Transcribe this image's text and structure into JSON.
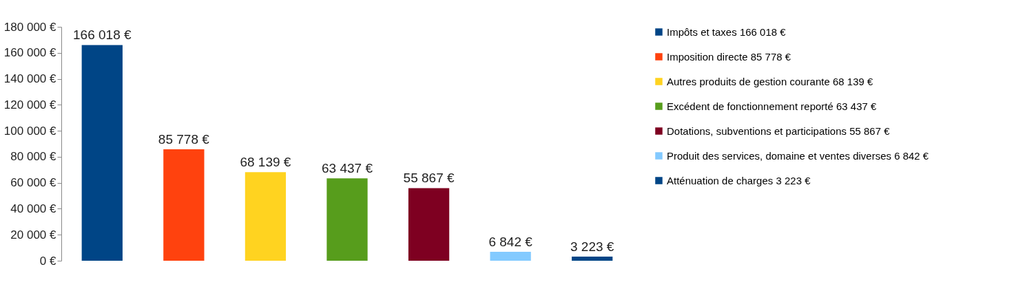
{
  "chart_data": {
    "type": "bar",
    "stacked": true,
    "categories": [
      null,
      null,
      null,
      null,
      null,
      null,
      null
    ],
    "series": [
      {
        "name": "Impôts et taxes 166 018 €",
        "color": "#004586",
        "values": [
          166018,
          null,
          null,
          null,
          null,
          null,
          null
        ],
        "value_labels": [
          "166 018 €",
          null,
          null,
          null,
          null,
          null,
          null
        ]
      },
      {
        "name": "Imposition directe 85 778 €",
        "color": "#ff420e",
        "values": [
          null,
          85778,
          null,
          null,
          null,
          null,
          null
        ],
        "value_labels": [
          null,
          "85 778 €",
          null,
          null,
          null,
          null,
          null
        ]
      },
      {
        "name": "Autres produits de gestion courante 68 139 €",
        "color": "#ffd320",
        "values": [
          null,
          null,
          68139,
          null,
          null,
          null,
          null
        ],
        "value_labels": [
          null,
          null,
          "68 139 €",
          null,
          null,
          null,
          null
        ]
      },
      {
        "name": "Excédent de fonctionnement reporté 63 437 €",
        "color": "#579d1c",
        "values": [
          null,
          null,
          null,
          63437,
          null,
          null,
          null
        ],
        "value_labels": [
          null,
          null,
          null,
          "63 437 €",
          null,
          null,
          null
        ]
      },
      {
        "name": "Dotations, subventions et participations 55 867 €",
        "color": "#7e0021",
        "values": [
          null,
          null,
          null,
          null,
          55867,
          null,
          null
        ],
        "value_labels": [
          null,
          null,
          null,
          null,
          "55 867 €",
          null,
          null
        ]
      },
      {
        "name": "Produit des services, domaine et ventes diverses 6 842 €",
        "color": "#83caff",
        "values": [
          null,
          null,
          null,
          null,
          null,
          6842,
          null
        ],
        "value_labels": [
          null,
          null,
          null,
          null,
          null,
          "6 842 €",
          null
        ]
      },
      {
        "name": "Atténuation de charges 3 223 €",
        "color": "#004586",
        "values": [
          null,
          null,
          null,
          null,
          null,
          null,
          3223
        ],
        "value_labels": [
          null,
          null,
          null,
          null,
          null,
          null,
          "3 223 €"
        ]
      }
    ],
    "ylim": [
      0,
      180000
    ],
    "yticks": [
      {
        "value": 0,
        "label": "0 €"
      },
      {
        "value": 20000,
        "label": "20 000 €"
      },
      {
        "value": 40000,
        "label": "40 000 €"
      },
      {
        "value": 60000,
        "label": "60 000 €"
      },
      {
        "value": 80000,
        "label": "80 000 €"
      },
      {
        "value": 100000,
        "label": "100 000 €"
      },
      {
        "value": 120000,
        "label": "120 000 €"
      },
      {
        "value": 140000,
        "label": "140 000 €"
      },
      {
        "value": 160000,
        "label": "160 000 €"
      },
      {
        "value": 180000,
        "label": "180 000 €"
      }
    ],
    "tick_labels": "y",
    "grid": false,
    "legend": "right"
  }
}
